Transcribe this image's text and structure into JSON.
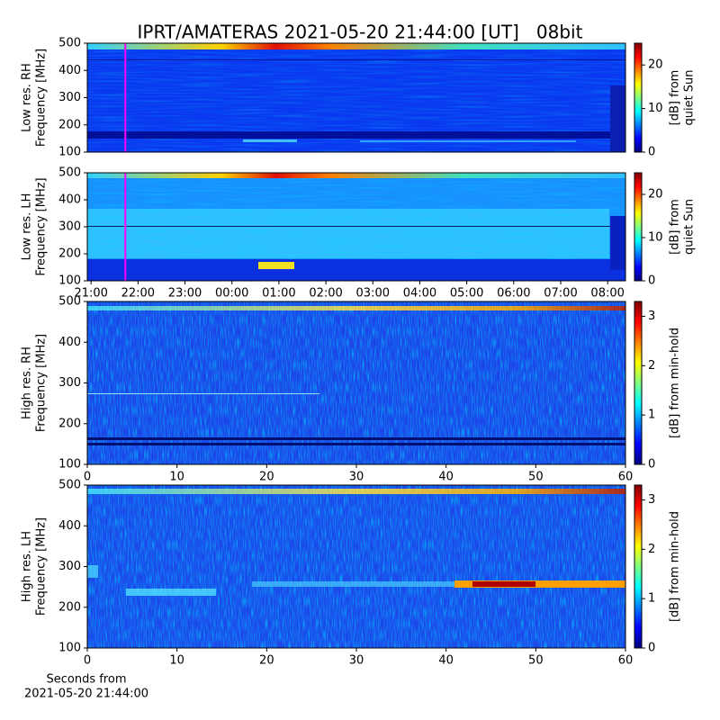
{
  "chart_data": [
    {
      "type": "spectrogram",
      "title": "IPRT/AMATERAS 2021-05-20 21:44:00 [UT]   08bit",
      "ylabel": [
        "Low res. RH",
        "Frequency [MHz]"
      ],
      "xlim": [
        20.92,
        32.38
      ],
      "ylim": [
        100,
        500
      ],
      "yticks": [
        100,
        200,
        300,
        400,
        500
      ],
      "marker_x": 21.73,
      "marker_color": "#ff00ff",
      "colormap": "jet",
      "clim": [
        0,
        25
      ],
      "cticks": [
        0,
        10,
        20
      ],
      "clabel": [
        "[dB] from",
        "quiet Sun"
      ]
    },
    {
      "type": "spectrogram",
      "ylabel": [
        "Low res. LH",
        "Frequency [MHz]"
      ],
      "xlim": [
        20.92,
        32.38
      ],
      "ylim": [
        100,
        500
      ],
      "yticks": [
        100,
        200,
        300,
        400,
        500
      ],
      "xticks": [
        {
          "value": 21,
          "label": "21:00"
        },
        {
          "value": 22,
          "label": "22:00"
        },
        {
          "value": 23,
          "label": "23:00"
        },
        {
          "value": 24,
          "label": "00:00"
        },
        {
          "value": 25,
          "label": "01:00"
        },
        {
          "value": 26,
          "label": "02:00"
        },
        {
          "value": 27,
          "label": "03:00"
        },
        {
          "value": 28,
          "label": "04:00"
        },
        {
          "value": 29,
          "label": "05:00"
        },
        {
          "value": 30,
          "label": "06:00"
        },
        {
          "value": 31,
          "label": "07:00"
        },
        {
          "value": 32,
          "label": "08:00"
        }
      ],
      "marker_x": 21.73,
      "marker_color": "#ff00ff",
      "colormap": "jet",
      "clim": [
        0,
        25
      ],
      "cticks": [
        0,
        10,
        20
      ],
      "clabel": [
        "[dB] from",
        "quiet Sun"
      ]
    },
    {
      "type": "spectrogram",
      "ylabel": [
        "High res. RH",
        "Frequency [MHz]"
      ],
      "xlim": [
        0,
        60
      ],
      "xticks": [
        0,
        10,
        20,
        30,
        40,
        50,
        60
      ],
      "ylim": [
        100,
        500
      ],
      "yticks": [
        100,
        200,
        300,
        400,
        500
      ],
      "colormap": "jet",
      "clim": [
        0,
        3.3
      ],
      "cticks": [
        0,
        1,
        2,
        3
      ],
      "clabel": "[dB] from min-hold"
    },
    {
      "type": "spectrogram",
      "ylabel": [
        "High res. LH",
        "Frequency [MHz]"
      ],
      "xlim": [
        0,
        60
      ],
      "xticks": [
        0,
        10,
        20,
        30,
        40,
        50,
        60
      ],
      "ylim": [
        100,
        500
      ],
      "yticks": [
        100,
        200,
        300,
        400,
        500
      ],
      "xlabel": [
        "Seconds from",
        "2021-05-20 21:44:00"
      ],
      "colormap": "jet",
      "clim": [
        0,
        3.3
      ],
      "cticks": [
        0,
        1,
        2,
        3
      ],
      "clabel": "[dB] from min-hold"
    }
  ]
}
